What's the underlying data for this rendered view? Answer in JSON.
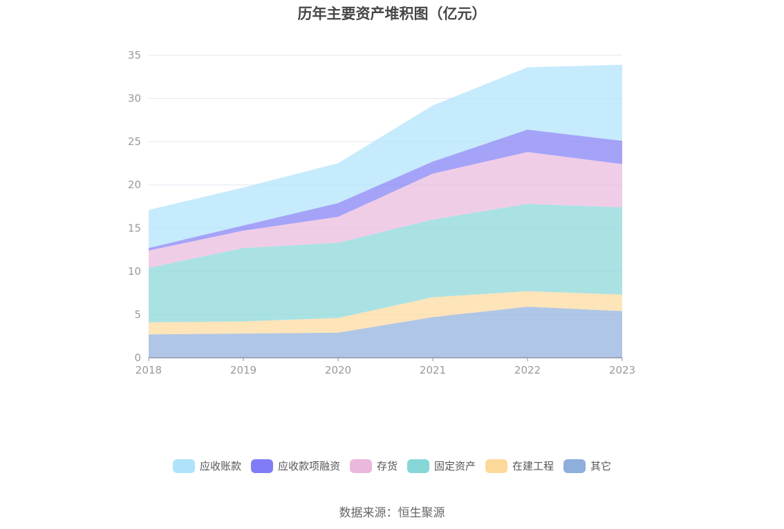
{
  "title": "历年主要资产堆积图（亿元）",
  "source": "数据来源：恒生聚源",
  "chart_data": {
    "type": "area",
    "stacked": true,
    "title": "历年主要资产堆积图（亿元）",
    "categories": [
      "2018",
      "2019",
      "2020",
      "2021",
      "2022",
      "2023"
    ],
    "ylim": [
      0,
      35
    ],
    "yticks": [
      0,
      5,
      10,
      15,
      20,
      25,
      30,
      35
    ],
    "grid": true,
    "legend_position": "bottom",
    "series": [
      {
        "name": "其它",
        "color": "#8eaedc",
        "values": [
          2.7,
          2.8,
          2.9,
          4.7,
          5.9,
          5.4
        ]
      },
      {
        "name": "在建工程",
        "color": "#fcd89b",
        "values": [
          1.4,
          1.4,
          1.7,
          2.3,
          1.8,
          1.9
        ]
      },
      {
        "name": "固定资产",
        "color": "#86d6d8",
        "values": [
          6.3,
          8.5,
          8.7,
          9.0,
          10.1,
          10.1
        ]
      },
      {
        "name": "存货",
        "color": "#eab8db",
        "values": [
          2.0,
          2.0,
          3.0,
          5.3,
          6.0,
          5.0
        ]
      },
      {
        "name": "应收款项融资",
        "color": "#7f7cf5",
        "values": [
          0.3,
          0.6,
          1.6,
          1.4,
          2.6,
          2.7
        ]
      },
      {
        "name": "应收账款",
        "color": "#aee3fb",
        "values": [
          4.4,
          4.4,
          4.6,
          6.5,
          7.2,
          8.8
        ]
      }
    ]
  }
}
